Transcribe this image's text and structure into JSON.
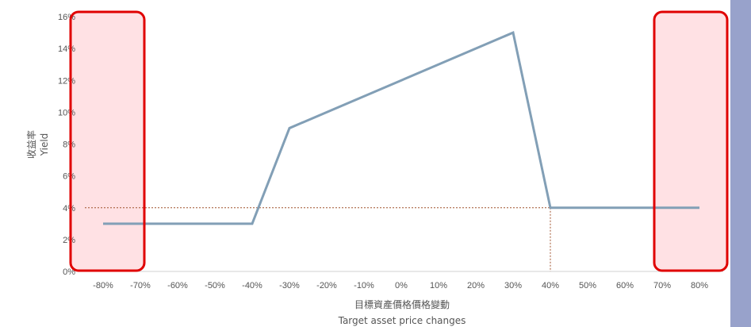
{
  "chart_data": {
    "type": "line",
    "xlabel_zh": "目標資產價格價格變動",
    "xlabel_en": "Target asset price changes",
    "ylabel_zh": "收益率",
    "ylabel_en": "Yield",
    "x_ticks": [
      "-80%",
      "-70%",
      "-60%",
      "-50%",
      "-40%",
      "-30%",
      "-20%",
      "-10%",
      "0%",
      "10%",
      "20%",
      "30%",
      "40%",
      "50%",
      "60%",
      "70%",
      "80%"
    ],
    "x_tick_values": [
      -80,
      -70,
      -60,
      -50,
      -40,
      -30,
      -20,
      -10,
      0,
      10,
      20,
      30,
      40,
      50,
      60,
      70,
      80
    ],
    "y_ticks": [
      "0%",
      "2%",
      "4%",
      "6%",
      "8%",
      "10%",
      "12%",
      "14%",
      "16%"
    ],
    "y_tick_values": [
      0,
      2,
      4,
      6,
      8,
      10,
      12,
      14,
      16
    ],
    "xlim": [
      -80,
      80
    ],
    "ylim": [
      0,
      16
    ],
    "series": [
      {
        "x": [
          -80,
          -40,
          -30,
          30,
          40,
          80
        ],
        "y": [
          3,
          3,
          9,
          15,
          4,
          4
        ]
      }
    ],
    "reference_lines": {
      "horizontal_y": 4,
      "vertical_x": 40
    },
    "highlight_ranges": [
      {
        "from": -80,
        "to": -70
      },
      {
        "from": 70,
        "to": 80
      }
    ],
    "colors": {
      "line": "#829fb6",
      "reference": "#a0522d",
      "highlight_fill": "#ffe1e4",
      "highlight_stroke": "#e00000",
      "side_bar": "#98a2cb"
    }
  }
}
